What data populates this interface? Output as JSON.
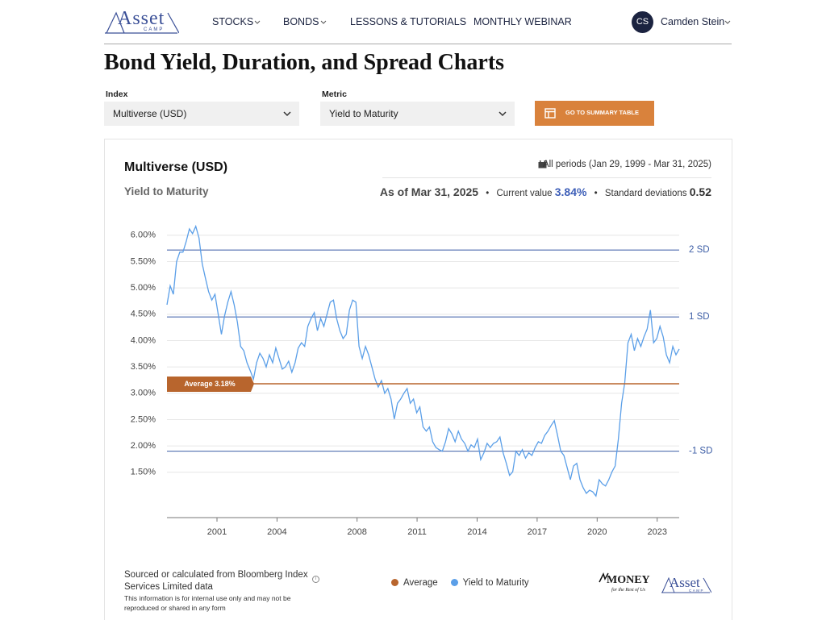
{
  "nav": {
    "logo": "Asset",
    "logo_sub": "CAMP",
    "items": [
      "STOCKS",
      "BONDS",
      "LESSONS & TUTORIALS",
      "MONTHLY WEBINAR"
    ],
    "avatar": "CS",
    "user": "Camden Stein"
  },
  "page_title": "Bond Yield, Duration, and Spread Charts",
  "filters": {
    "index_label": "Index",
    "index_value": "Multiverse (USD)",
    "metric_label": "Metric",
    "metric_value": "Yield to Maturity",
    "button": "GO TO SUMMARY TABLE"
  },
  "card": {
    "title": "Multiverse (USD)",
    "subtitle": "Yield to Maturity",
    "period": "All periods (Jan 29, 1999 - Mar 31, 2025)",
    "as_of": "As of Mar 31, 2025",
    "bullet": "•",
    "current_label": "Current value",
    "current_value": "3.84%",
    "sd_label": "Standard deviations",
    "sd_value": "0.52",
    "source": "Sourced or calculated from Bloomberg Index Services Limited data",
    "disclaimer": "This information is for internal use only and may not be reproduced or shared in any form",
    "info": "i",
    "logo_money": "MONEY",
    "logo_money_sub": "for the Rest of Us",
    "logo_asset": "Asset",
    "logo_asset_sub": "CAMP"
  },
  "chart_data": {
    "type": "line",
    "xlim": [
      1998.5,
      2024.1
    ],
    "xticks": [
      2001,
      2004,
      2008,
      2011,
      2014,
      2017,
      2020,
      2023
    ],
    "ylim": [
      0.64,
      6.3
    ],
    "yticks": [
      {
        "value": 1.5,
        "label": "1.50%"
      },
      {
        "value": 2,
        "label": "2.00%"
      },
      {
        "value": 2.5,
        "label": "2.50%"
      },
      {
        "value": 3,
        "label": "3.00%"
      },
      {
        "value": 3.5,
        "label": "3.50%"
      },
      {
        "value": 4,
        "label": "4.00%"
      },
      {
        "value": 4.5,
        "label": "4.50%"
      },
      {
        "value": 5,
        "label": "5.00%"
      },
      {
        "value": 5.5,
        "label": "5.50%"
      },
      {
        "value": 6,
        "label": "6.00%"
      }
    ],
    "grid": true,
    "average": {
      "name": "Average",
      "value": 3.18,
      "label": "Average 3.18%",
      "color": "#b8652d"
    },
    "sd_lines": [
      {
        "label": "2 SD",
        "value": 5.72
      },
      {
        "label": "1 SD",
        "value": 4.45
      },
      {
        "label": "-1 SD",
        "value": 1.9
      }
    ],
    "sd_color": "#3d5ea6",
    "series": [
      {
        "name": "Yield to Maturity",
        "color": "#5b9fe8",
        "x": [
          1998.5,
          1998.66,
          1998.82,
          1998.98,
          1999.14,
          1999.3,
          1999.46,
          1999.62,
          1999.78,
          1999.94,
          2000.1,
          2000.26,
          2000.42,
          2000.58,
          2000.74,
          2000.9,
          2001.06,
          2001.22,
          2001.38,
          2001.54,
          2001.7,
          2001.86,
          2002.02,
          2002.18,
          2002.34,
          2002.5,
          2002.66,
          2002.82,
          2002.98,
          2003.14,
          2003.3,
          2003.46,
          2003.62,
          2003.78,
          2003.94,
          2004.1,
          2004.26,
          2004.42,
          2004.58,
          2004.74,
          2004.9,
          2005.06,
          2005.22,
          2005.38,
          2005.54,
          2005.7,
          2005.86,
          2006.02,
          2006.18,
          2006.34,
          2006.5,
          2006.66,
          2006.82,
          2006.98,
          2007.14,
          2007.3,
          2007.46,
          2007.62,
          2007.78,
          2007.94,
          2008.1,
          2008.26,
          2008.42,
          2008.58,
          2008.74,
          2008.9,
          2009.06,
          2009.22,
          2009.38,
          2009.54,
          2009.7,
          2009.86,
          2010.02,
          2010.18,
          2010.34,
          2010.5,
          2010.66,
          2010.82,
          2010.98,
          2011.14,
          2011.3,
          2011.46,
          2011.62,
          2011.78,
          2011.94,
          2012.1,
          2012.26,
          2012.42,
          2012.58,
          2012.74,
          2012.9,
          2013.06,
          2013.22,
          2013.38,
          2013.54,
          2013.7,
          2013.86,
          2014.02,
          2014.18,
          2014.34,
          2014.5,
          2014.66,
          2014.82,
          2014.98,
          2015.14,
          2015.3,
          2015.46,
          2015.62,
          2015.78,
          2015.94,
          2016.1,
          2016.26,
          2016.42,
          2016.58,
          2016.74,
          2016.9,
          2017.06,
          2017.22,
          2017.38,
          2017.54,
          2017.7,
          2017.86,
          2018.02,
          2018.18,
          2018.34,
          2018.5,
          2018.66,
          2018.82,
          2018.98,
          2019.14,
          2019.3,
          2019.46,
          2019.62,
          2019.78,
          2019.94,
          2020.1,
          2020.26,
          2020.42,
          2020.58,
          2020.74,
          2020.9,
          2021.06,
          2021.22,
          2021.38,
          2021.54,
          2021.7,
          2021.86,
          2022.02,
          2022.18,
          2022.34,
          2022.5,
          2022.66,
          2022.82,
          2022.98,
          2023.14,
          2023.3,
          2023.46,
          2023.62,
          2023.78,
          2023.94,
          2024.1
        ],
        "values": [
          4.68,
          5.04,
          4.88,
          5.5,
          5.68,
          5.68,
          5.88,
          6.12,
          6.03,
          6.17,
          5.95,
          5.46,
          5.19,
          4.93,
          4.77,
          4.88,
          4.5,
          4.12,
          4.47,
          4.73,
          4.93,
          4.68,
          4.35,
          3.89,
          3.81,
          3.58,
          3.43,
          3.27,
          3.58,
          3.76,
          3.66,
          3.5,
          3.73,
          3.58,
          3.86,
          3.66,
          3.46,
          3.5,
          3.61,
          3.4,
          3.58,
          3.86,
          3.96,
          3.89,
          4.27,
          4.42,
          4.53,
          4.19,
          4.42,
          4.27,
          4.5,
          4.73,
          4.77,
          4.42,
          4.19,
          4.04,
          4.12,
          4.58,
          4.77,
          4.73,
          3.89,
          3.66,
          3.89,
          3.73,
          3.5,
          3.27,
          3.12,
          3.24,
          3.0,
          3.09,
          2.89,
          2.51,
          2.81,
          2.89,
          3.0,
          3.09,
          2.81,
          2.89,
          2.63,
          2.74,
          2.36,
          2.28,
          2.36,
          2.08,
          1.97,
          1.93,
          1.9,
          2.08,
          2.33,
          2.23,
          2.08,
          2.28,
          2.13,
          2.05,
          1.9,
          2.02,
          1.97,
          2.13,
          1.74,
          1.87,
          2.05,
          1.97,
          2.05,
          2.08,
          2.17,
          1.87,
          1.67,
          1.44,
          1.51,
          1.9,
          1.82,
          1.93,
          1.77,
          1.87,
          1.82,
          1.97,
          2.08,
          2.05,
          2.2,
          2.28,
          2.39,
          2.48,
          2.2,
          1.9,
          1.82,
          1.59,
          1.36,
          1.62,
          1.67,
          1.36,
          1.21,
          1.1,
          1.16,
          1.13,
          1.05,
          1.36,
          1.28,
          1.24,
          1.36,
          1.51,
          1.62,
          2.13,
          2.81,
          3.2,
          3.96,
          4.12,
          3.81,
          4.04,
          3.89,
          4.07,
          4.22,
          4.58,
          3.96,
          4.04,
          4.27,
          4.07,
          3.73,
          3.58,
          3.89,
          3.73,
          3.84
        ]
      }
    ]
  }
}
